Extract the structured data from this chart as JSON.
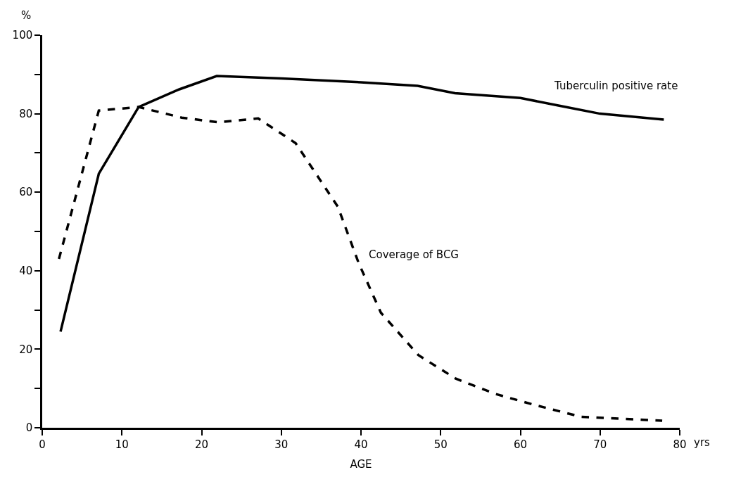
{
  "chart_data": {
    "type": "line",
    "xlabel": "AGE",
    "ylabel": "%",
    "annotations": [
      "yrs"
    ],
    "xlim": [
      0,
      80
    ],
    "xticks": [
      0,
      10,
      20,
      30,
      40,
      50,
      60,
      70,
      80
    ],
    "ylim": [
      0,
      100
    ],
    "yticks": [
      0,
      {
        "value": 10,
        "label": null
      },
      20,
      {
        "value": 30,
        "label": null
      },
      40,
      {
        "value": 50,
        "label": null
      },
      60,
      {
        "value": 70,
        "label": null
      },
      80,
      {
        "value": 90,
        "label": null
      },
      100
    ],
    "legend": false,
    "marker": "none",
    "series": [
      {
        "name": "Tuberculin positive rate",
        "color": "#000000",
        "line_style": "solid",
        "x": [
          2.3,
          7.1,
          12.1,
          17.2,
          21.9,
          30,
          40,
          47.1,
          51.8,
          60,
          65,
          70,
          78
        ],
        "values": [
          24.5,
          64.7,
          81.7,
          86.2,
          89.6,
          89,
          88,
          87.1,
          85.2,
          84,
          82,
          80,
          78.5
        ]
      },
      {
        "name": "Coverage of BCG",
        "color": "#000000",
        "line_style": "dashed",
        "x": [
          2.1,
          7.1,
          12.1,
          17.5,
          22.1,
          27.1,
          31.8,
          37.1,
          39.7,
          42.5,
          47.2,
          51.9,
          56.9,
          61.8,
          67.6,
          77.8
        ],
        "values": [
          43,
          80.8,
          81.7,
          79,
          77.8,
          78.8,
          72.5,
          56.3,
          42,
          29.3,
          18.5,
          12.5,
          8.6,
          5.8,
          2.8,
          1.8
        ]
      }
    ]
  }
}
